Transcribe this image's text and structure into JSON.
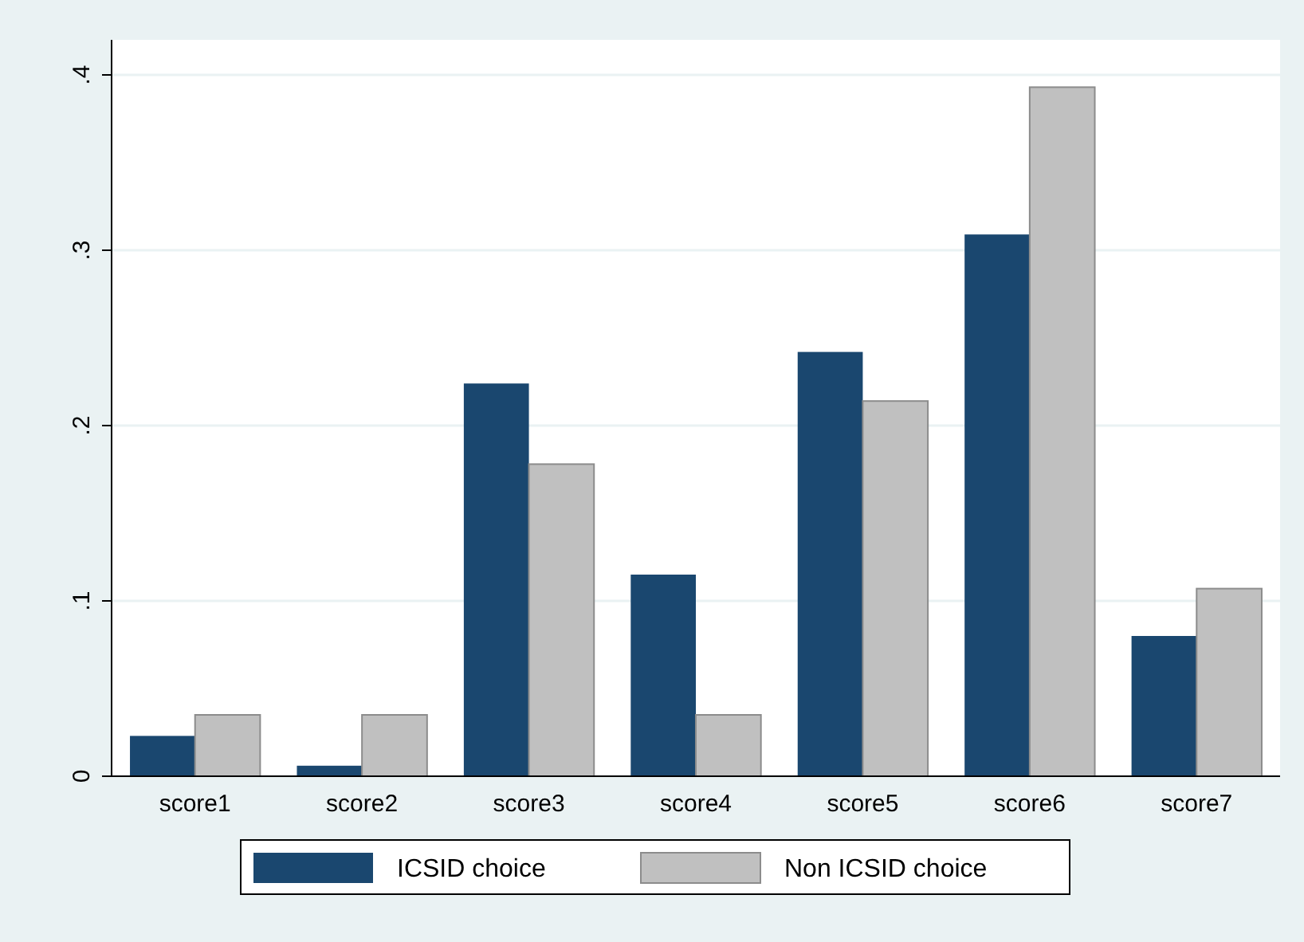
{
  "chart_data": {
    "type": "bar",
    "categories": [
      "score1",
      "score2",
      "score3",
      "score4",
      "score5",
      "score6",
      "score7"
    ],
    "series": [
      {
        "name": "ICSID choice",
        "color": "#1a476f",
        "values": [
          0.023,
          0.006,
          0.224,
          0.115,
          0.242,
          0.309,
          0.08
        ]
      },
      {
        "name": "Non ICSID choice",
        "color": "#c0c0c0",
        "values": [
          0.035,
          0.035,
          0.178,
          0.035,
          0.214,
          0.393,
          0.107
        ]
      }
    ],
    "ylim": [
      0,
      0.42
    ],
    "yticks": [
      {
        "value": 0,
        "label": "0"
      },
      {
        "value": 0.1,
        "label": ".1"
      },
      {
        "value": 0.2,
        "label": ".2"
      },
      {
        "value": 0.3,
        "label": ".3"
      },
      {
        "value": 0.4,
        "label": ".4"
      }
    ],
    "grid": "y",
    "legend": "bottom"
  }
}
